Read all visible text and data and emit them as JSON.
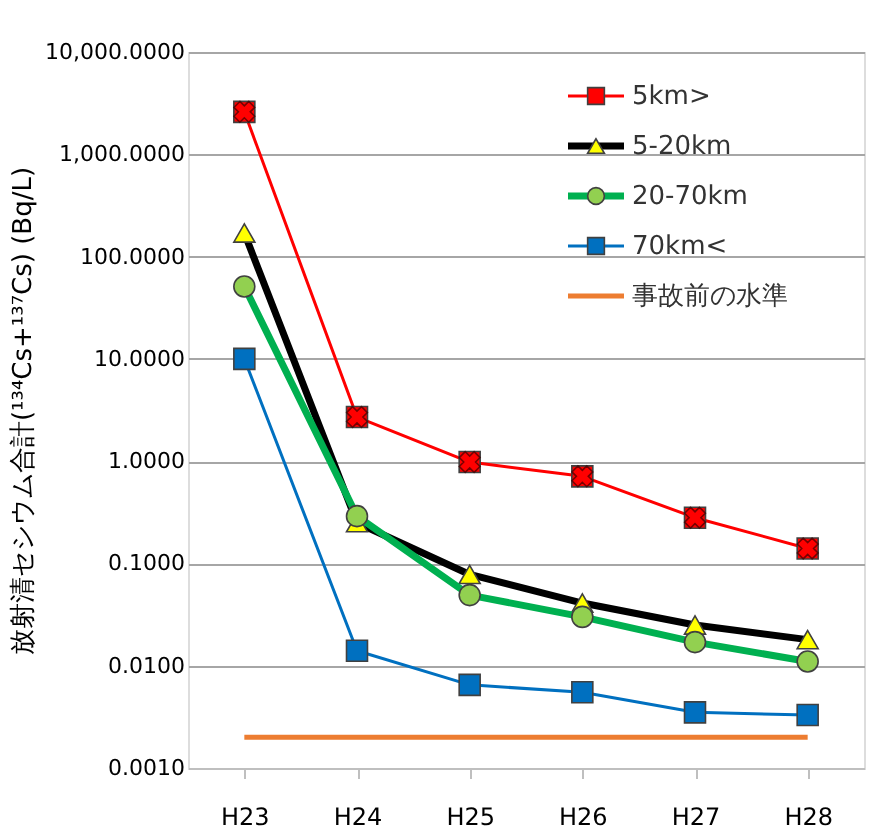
{
  "chart_data": {
    "type": "line",
    "ylabel": "放射清セシウム合計(¹³⁴Cs+¹³⁷Cs) (Bq/L)",
    "categories": [
      "H23",
      "H24",
      "H25",
      "H26",
      "H27",
      "H28"
    ],
    "series": [
      {
        "name": "5km>",
        "color": "#ff0000",
        "colors": [
          "#ff0000",
          "#ff0000",
          "#ff0000",
          "#ff0000",
          "#ff0000",
          "#ff0000"
        ],
        "marker": "square",
        "values": [
          2600,
          2.7,
          0.98,
          0.71,
          0.28,
          0.14
        ]
      },
      {
        "name": "5-20km",
        "color": "#000000",
        "colors": [
          "#ffff00",
          "#ffff00",
          "#ffff00",
          "#ffff00",
          "#ffff00",
          "#ffff00"
        ],
        "marker": "triangle",
        "values": [
          170,
          0.25,
          0.078,
          0.041,
          0.025,
          0.018
        ]
      },
      {
        "name": "20-70km",
        "color": "#00b050",
        "colors": [
          "#92d050",
          "#92d050",
          "#92d050",
          "#92d050",
          "#92d050",
          "#92d050"
        ],
        "marker": "circle",
        "values": [
          51,
          0.29,
          0.049,
          0.03,
          0.017,
          0.011
        ]
      },
      {
        "name": "70km<",
        "color": "#0070c0",
        "colors": [
          "#0070c0",
          "#0070c0",
          "#0070c0",
          "#0070c0",
          "#0070c0",
          "#0070c0"
        ],
        "marker": "square",
        "values": [
          10,
          0.014,
          0.0065,
          0.0055,
          0.0035,
          0.0033
        ]
      },
      {
        "name": "事故前の水準",
        "color": "#ed7d31",
        "marker": "none",
        "values": [
          0.002,
          0.002,
          0.002,
          0.002,
          0.002,
          0.002
        ]
      }
    ],
    "log": true,
    "ylim": [
      0.001,
      10000
    ],
    "yticks": [
      {
        "value": 0.001,
        "label": "0.0010"
      },
      {
        "value": 0.01,
        "label": "0.0100"
      },
      {
        "value": 0.1,
        "label": "0.1000"
      },
      {
        "value": 1,
        "label": "1.0000"
      },
      {
        "value": 10,
        "label": "10.0000"
      },
      {
        "value": 100,
        "label": "100.0000"
      },
      {
        "value": 1000,
        "label": "1,000.0000"
      },
      {
        "value": 10000,
        "label": "10,000.0000"
      }
    ],
    "grid": "y",
    "legend": "top right",
    "line_style": "solid"
  }
}
